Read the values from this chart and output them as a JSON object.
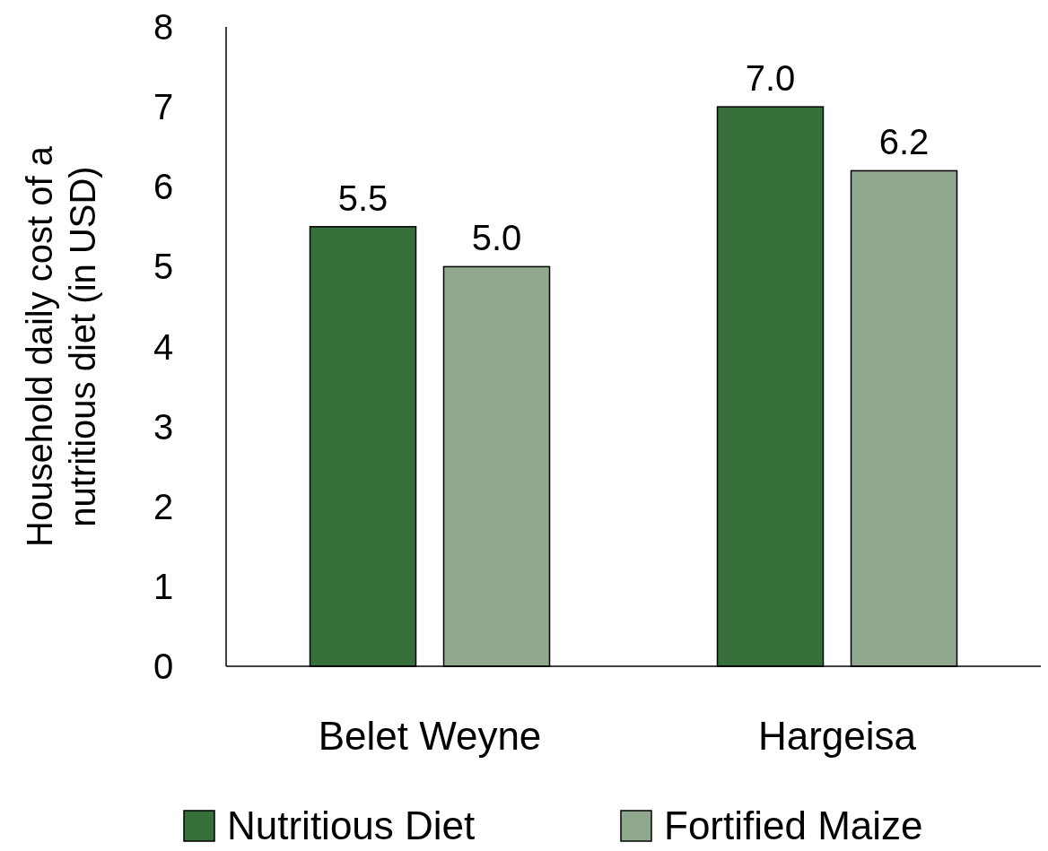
{
  "chart_data": {
    "type": "bar",
    "ylabel": "Household daily cost of a nutritious diet (in USD)",
    "categories": [
      "Belet Weyne",
      "Hargeisa"
    ],
    "series": [
      {
        "name": "Nutritious Diet",
        "color": "#376f3a",
        "values": [
          5.5,
          7.0
        ],
        "value_labels": [
          "5.5",
          "7.0"
        ]
      },
      {
        "name": "Fortified Maize",
        "color": "#8fa88e",
        "values": [
          5.0,
          6.2
        ],
        "value_labels": [
          "5.0",
          "6.2"
        ]
      }
    ],
    "ylim": [
      0,
      8
    ],
    "yticks": [
      0,
      1,
      2,
      3,
      4,
      5,
      6,
      7,
      8
    ],
    "grid": false,
    "legend": "bottom"
  }
}
